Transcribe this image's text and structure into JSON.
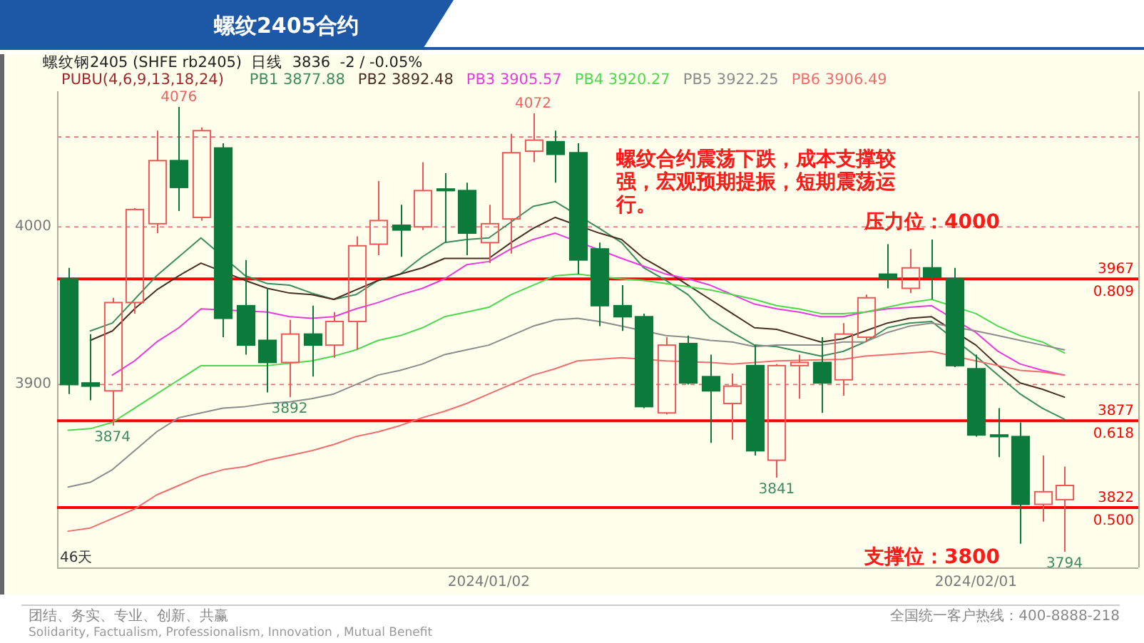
{
  "chart_data": {
    "type": "candlestick",
    "title": "螺纹2405合约",
    "subtitle": "螺纹钢2405 (SHFE rb2405)  日线  3836  -2 / -0.05%",
    "legend_title": "PUBU(4,6,9,13,18,24)",
    "categories": [
      null,
      null,
      null,
      null,
      null,
      null,
      null,
      null,
      null,
      null,
      null,
      null,
      null,
      null,
      null,
      null,
      null,
      null,
      null,
      "2024/01/02",
      null,
      null,
      null,
      null,
      null,
      null,
      null,
      null,
      null,
      null,
      null,
      null,
      null,
      null,
      null,
      null,
      null,
      null,
      null,
      null,
      null,
      "2024/02/01",
      null,
      null,
      null,
      null
    ],
    "ohlc": [
      [
        3967,
        3974,
        3894,
        3900
      ],
      [
        3901,
        3932,
        3890,
        3899
      ],
      [
        3896,
        3955,
        3874,
        3952
      ],
      [
        3952,
        4012,
        3945,
        4011
      ],
      [
        4002,
        4061,
        3996,
        4042
      ],
      [
        4042,
        4076,
        4010,
        4025
      ],
      [
        4006,
        4063,
        4004,
        4061
      ],
      [
        4050,
        4053,
        3930,
        3942
      ],
      [
        3950,
        3979,
        3919,
        3925
      ],
      [
        3928,
        3961,
        3895,
        3914
      ],
      [
        3914,
        3941,
        3892,
        3932
      ],
      [
        3932,
        3950,
        3905,
        3925
      ],
      [
        3925,
        3946,
        3917,
        3940
      ],
      [
        3940,
        3994,
        3922,
        3988
      ],
      [
        3989,
        4029,
        3982,
        4004
      ],
      [
        4001,
        4014,
        3981,
        3998
      ],
      [
        4000,
        4041,
        3998,
        4023
      ],
      [
        4024,
        4034,
        3990,
        4023
      ],
      [
        4023,
        4028,
        3982,
        3996
      ],
      [
        3990,
        4014,
        3977,
        4002
      ],
      [
        4005,
        4059,
        3983,
        4047
      ],
      [
        4048,
        4072,
        4041,
        4055
      ],
      [
        4054,
        4061,
        4028,
        4046
      ],
      [
        4047,
        4053,
        3970,
        3979
      ],
      [
        3986,
        3990,
        3937,
        3950
      ],
      [
        3950,
        3963,
        3934,
        3943
      ],
      [
        3943,
        3945,
        3885,
        3886
      ],
      [
        3882,
        3930,
        3881,
        3925
      ],
      [
        3926,
        3931,
        3900,
        3901
      ],
      [
        3905,
        3919,
        3863,
        3896
      ],
      [
        3888,
        3907,
        3865,
        3899
      ],
      [
        3912,
        3925,
        3855,
        3858
      ],
      [
        3852,
        3913,
        3841,
        3912
      ],
      [
        3912,
        3919,
        3891,
        3914
      ],
      [
        3914,
        3930,
        3882,
        3901
      ],
      [
        3903,
        3939,
        3893,
        3932
      ],
      [
        3930,
        3957,
        3927,
        3955
      ],
      [
        3970,
        3989,
        3961,
        3967
      ],
      [
        3961,
        3986,
        3958,
        3974
      ],
      [
        3974,
        3992,
        3954,
        3968
      ],
      [
        3967,
        3974,
        3911,
        3912
      ],
      [
        3910,
        3919,
        3867,
        3868
      ],
      [
        3868,
        3885,
        3854,
        3867
      ],
      [
        3867,
        3876,
        3799,
        3824
      ],
      [
        3824,
        3855,
        3813,
        3832
      ],
      [
        3827,
        3848,
        3794,
        3836
      ]
    ],
    "colors": [
      "#0b7a3b",
      "#0b7a3b",
      "#f25555",
      "#f25555",
      "#f25555",
      "#0b7a3b",
      "#f25555",
      "#0b7a3b",
      "#0b7a3b",
      "#0b7a3b",
      "#f25555",
      "#0b7a3b",
      "#f25555",
      "#f25555",
      "#f25555",
      "#0b7a3b",
      "#f25555",
      "#0b7a3b",
      "#0b7a3b",
      "#f25555",
      "#f25555",
      "#f25555",
      "#0b7a3b",
      "#0b7a3b",
      "#0b7a3b",
      "#0b7a3b",
      "#0b7a3b",
      "#f25555",
      "#0b7a3b",
      "#0b7a3b",
      "#f25555",
      "#0b7a3b",
      "#f25555",
      "#f25555",
      "#0b7a3b",
      "#f25555",
      "#f25555",
      "#0b7a3b",
      "#f25555",
      "#0b7a3b",
      "#0b7a3b",
      "#0b7a3b",
      "#0b7a3b",
      "#0b7a3b",
      "#f25555",
      "#f25555"
    ],
    "series": [
      {
        "name": "PB1 3877.88",
        "type": "line",
        "color": "#3c8c5c",
        "values": [
          null,
          3934,
          3939,
          null,
          3969,
          3981,
          3993,
          null,
          3969,
          3964,
          3963,
          3958,
          3954,
          3957,
          3966,
          3970,
          3981,
          3990,
          3992,
          3993,
          null,
          4013,
          4016,
          null,
          3999,
          3990,
          3974,
          3966,
          3957,
          3942,
          3933,
          3925,
          3924,
          3921,
          3918,
          3921,
          3927,
          3936,
          3939,
          3940,
          null,
          3918,
          3906,
          3894,
          3885,
          3878
        ]
      },
      {
        "name": "PB2 3892.48",
        "type": "line",
        "color": "#4a2e22",
        "values": [
          null,
          3928,
          3934,
          3948,
          3960,
          3969,
          3977,
          null,
          3966,
          3961,
          3958,
          3957,
          3954,
          3960,
          3966,
          3970,
          3974,
          3980,
          3980,
          3980,
          3990,
          3999,
          4006,
          null,
          3996,
          3992,
          3980,
          3972,
          3963,
          3954,
          3945,
          3936,
          3935,
          3931,
          3927,
          3929,
          3934,
          3939,
          3942,
          3943,
          null,
          3925,
          3912,
          3901,
          3897,
          3892
        ]
      },
      {
        "name": "PB3 3905.57",
        "type": "line",
        "color": "#e83ae0",
        "values": [
          null,
          null,
          3906,
          3915,
          3927,
          3936,
          3948,
          null,
          null,
          3946,
          3943,
          3942,
          3943,
          3948,
          3952,
          3957,
          3961,
          3967,
          3976,
          3978,
          3986,
          3992,
          3996,
          null,
          null,
          3980,
          3975,
          3970,
          3967,
          3963,
          3957,
          3951,
          3948,
          3946,
          3943,
          3943,
          3946,
          3948,
          3949,
          3950,
          null,
          3933,
          3921,
          3913,
          3909,
          3906
        ]
      },
      {
        "name": "PB4 3920.27",
        "type": "line",
        "color": "#4cd94c",
        "values": [
          3871,
          3872,
          3876,
          3885,
          3894,
          3903,
          3912,
          3912,
          3912,
          3912,
          null,
          3915,
          3918,
          3922,
          3928,
          3931,
          3936,
          3943,
          3946,
          3949,
          3957,
          3963,
          3969,
          3970,
          null,
          3967,
          3966,
          3964,
          3962,
          3960,
          3957,
          3954,
          3950,
          3948,
          3945,
          3945,
          3946,
          3949,
          3952,
          3954,
          null,
          3945,
          3937,
          3931,
          3927,
          3920
        ]
      },
      {
        "name": "PB5 3922.25",
        "type": "line",
        "color": "#8c8c8c",
        "values": [
          3835,
          3838,
          3846,
          3858,
          3870,
          3879,
          3882,
          3885,
          3886,
          3888,
          3889,
          3891,
          3894,
          3900,
          3906,
          3909,
          3913,
          3919,
          3922,
          3925,
          3931,
          3937,
          3941,
          3942,
          3940,
          3937,
          null,
          3931,
          3930,
          3928,
          3927,
          3924,
          3925,
          3925,
          3925,
          3927,
          3927,
          3933,
          3937,
          3939,
          null,
          3934,
          3931,
          3928,
          3925,
          3922
        ]
      },
      {
        "name": "PB6 3906.49",
        "type": "line",
        "color": "#f26d6d",
        "values": [
          3807,
          3809,
          3815,
          3821,
          3830,
          3836,
          3842,
          3846,
          3848,
          3852,
          3855,
          3858,
          3862,
          3867,
          3870,
          3874,
          3879,
          3883,
          3888,
          3894,
          3900,
          3906,
          3910,
          3915,
          3916,
          3917,
          null,
          3915,
          null,
          3914,
          3913,
          null,
          3915,
          null,
          null,
          3916,
          3918,
          3919,
          3920,
          3921,
          null,
          3915,
          3912,
          3909,
          3908,
          3906
        ]
      }
    ],
    "ylim": [
      3784,
      4086
    ],
    "yticks": [
      3900,
      4000,
      {
        "value": 4057,
        "label": null
      }
    ],
    "grid": "y",
    "legend": "top left",
    "ref_lines": [
      {
        "axis": "y",
        "value": 3967,
        "color": "#ff0000"
      },
      {
        "axis": "y",
        "value": 3877,
        "color": "#ff0000"
      },
      {
        "axis": "y",
        "value": 3822,
        "color": "#ff0000"
      }
    ],
    "annotations": [
      "螺纹合约震荡下跌，成本支撑较强，宏观预期提振，短期震荡运行。",
      "压力位：4000",
      "支撑位：3800",
      "46天",
      {
        "text": "3967",
        "y": 3967
      },
      {
        "text": "0.809",
        "y": 3967
      },
      {
        "text": "3877",
        "y": 3877
      },
      {
        "text": "0.618",
        "y": 3877
      },
      {
        "text": "3822",
        "y": 3822
      },
      {
        "text": "0.500",
        "y": 3822
      },
      {
        "text": "4076",
        "y": 4076
      },
      {
        "text": "4072",
        "y": 4072
      },
      {
        "text": "3874",
        "y": 3874
      },
      {
        "text": "3892",
        "y": 3892
      },
      {
        "text": "3841",
        "y": 3841
      },
      {
        "text": "3794",
        "y": 3794
      },
      "团结、务实、专业、创新、共赢",
      "Solidarity, Factualism, Professionalism, Innovation , Mutual Benefit",
      "全国统一客户热线：400-8888-218"
    ]
  }
}
